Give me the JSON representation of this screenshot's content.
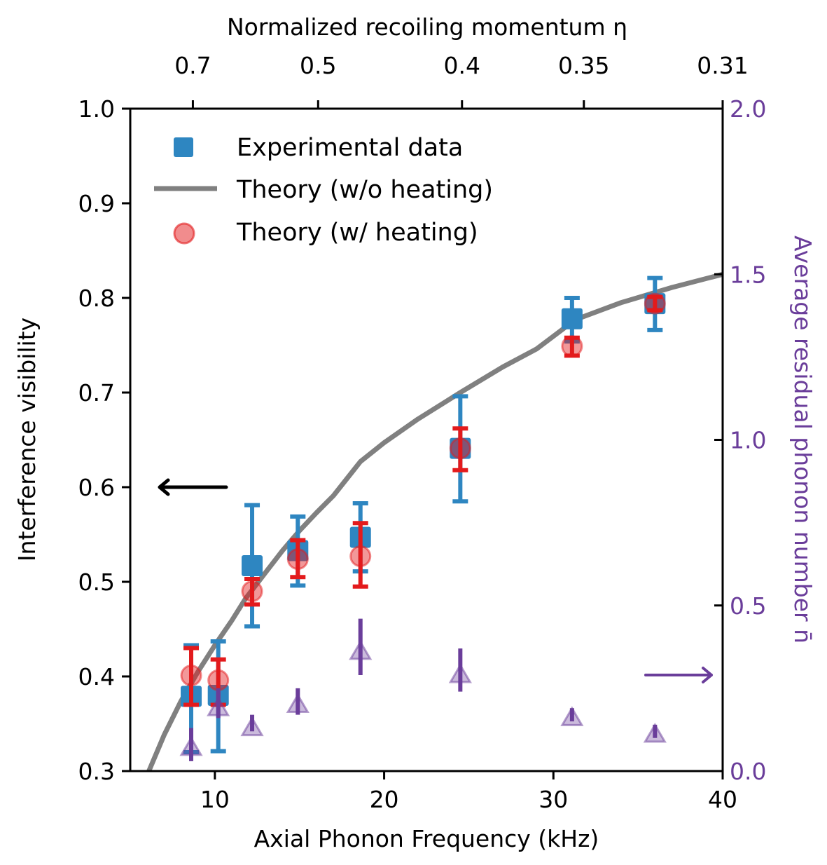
{
  "chart_data": {
    "type": "scatter",
    "title": "",
    "xlabel": "Axial Phonon Frequency (kHz)",
    "ylabel": "Interference visibility",
    "y2label": "Average residual phonon number n̄",
    "x2label": "Normalized recoiling momentum η",
    "xlim": [
      5,
      40
    ],
    "ylim": [
      0.3,
      1.0
    ],
    "y2lim": [
      0.0,
      2.0
    ],
    "grid": false,
    "legend_position": "top-left",
    "x_ticks": [
      10,
      20,
      30,
      40
    ],
    "x_tick_labels": [
      "10",
      "20",
      "30",
      "40"
    ],
    "y_ticks": [
      0.3,
      0.4,
      0.5,
      0.6,
      0.7,
      0.8,
      0.9,
      1.0
    ],
    "y_tick_labels": [
      "0.3",
      "0.4",
      "0.5",
      "0.6",
      "0.7",
      "0.8",
      "0.9",
      "1.0"
    ],
    "y2_ticks": [
      0.0,
      0.5,
      1.0,
      1.5,
      2.0
    ],
    "y2_tick_labels": [
      "0.0",
      "0.5",
      "1.0",
      "1.5",
      "2.0"
    ],
    "x2_ticks_at_khz": [
      8.7,
      16.1,
      24.6,
      31.8,
      40.0
    ],
    "x2_tick_labels": [
      "0.7",
      "0.5",
      "0.4",
      "0.35",
      "0.31"
    ],
    "colors": {
      "experimental": "#2e86c1",
      "theory_no_heating": "#808080",
      "theory_heating": "#e31a1c",
      "phonon": "#6a3d9a"
    },
    "series": [
      {
        "name": "Experimental data",
        "marker": "square",
        "axis": "left",
        "x": [
          8.6,
          10.2,
          12.2,
          14.9,
          18.6,
          24.5,
          31.1,
          36.0
        ],
        "y": [
          0.379,
          0.38,
          0.517,
          0.533,
          0.547,
          0.641,
          0.778,
          0.794
        ],
        "yerr_low": [
          0.32,
          0.321,
          0.453,
          0.496,
          0.511,
          0.585,
          0.754,
          0.766
        ],
        "yerr_high": [
          0.433,
          0.437,
          0.581,
          0.569,
          0.583,
          0.696,
          0.8,
          0.821
        ]
      },
      {
        "name": "Theory (w/o heating)",
        "marker": "line",
        "axis": "left",
        "x": [
          6.1,
          7,
          8,
          9,
          10,
          11,
          11.8,
          13,
          14,
          15,
          16,
          17,
          18.6,
          20,
          22,
          24.5,
          27,
          29,
          31.3,
          34,
          37,
          40
        ],
        "y": [
          0.3,
          0.338,
          0.374,
          0.405,
          0.433,
          0.459,
          0.482,
          0.51,
          0.533,
          0.554,
          0.573,
          0.591,
          0.627,
          0.647,
          0.672,
          0.7,
          0.727,
          0.746,
          0.777,
          0.795,
          0.811,
          0.825
        ]
      },
      {
        "name": "Theory (w/ heating)",
        "marker": "circle",
        "axis": "left",
        "x": [
          8.6,
          10.2,
          12.2,
          14.9,
          18.6,
          24.5,
          31.1,
          36.0
        ],
        "y": [
          0.401,
          0.396,
          0.49,
          0.524,
          0.527,
          0.641,
          0.749,
          0.794
        ],
        "yerr_low": [
          0.37,
          0.37,
          0.476,
          0.505,
          0.495,
          0.618,
          0.739,
          0.787
        ],
        "yerr_high": [
          0.43,
          0.418,
          0.503,
          0.544,
          0.562,
          0.662,
          0.758,
          0.801
        ]
      },
      {
        "name": "Average residual phonon number",
        "marker": "triangle",
        "axis": "right",
        "x": [
          8.6,
          10.2,
          12.2,
          14.9,
          18.6,
          24.5,
          31.1,
          36.0
        ],
        "y": [
          0.07,
          0.19,
          0.13,
          0.2,
          0.36,
          0.29,
          0.16,
          0.11
        ],
        "yerr_low": [
          0.03,
          0.16,
          0.12,
          0.17,
          0.29,
          0.24,
          0.15,
          0.1
        ],
        "yerr_high": [
          0.13,
          0.25,
          0.17,
          0.25,
          0.46,
          0.37,
          0.19,
          0.14
        ]
      }
    ],
    "legend": [
      {
        "label": "Experimental data",
        "marker": "square"
      },
      {
        "label": "Theory (w/o heating)",
        "marker": "line"
      },
      {
        "label": "Theory (w/ heating)",
        "marker": "circle"
      }
    ],
    "annotations": [
      {
        "type": "arrow",
        "direction": "left",
        "at_y": 0.6,
        "meaning": "left axis"
      },
      {
        "type": "arrow",
        "direction": "right",
        "at_y2": 0.29,
        "meaning": "right axis"
      }
    ]
  }
}
